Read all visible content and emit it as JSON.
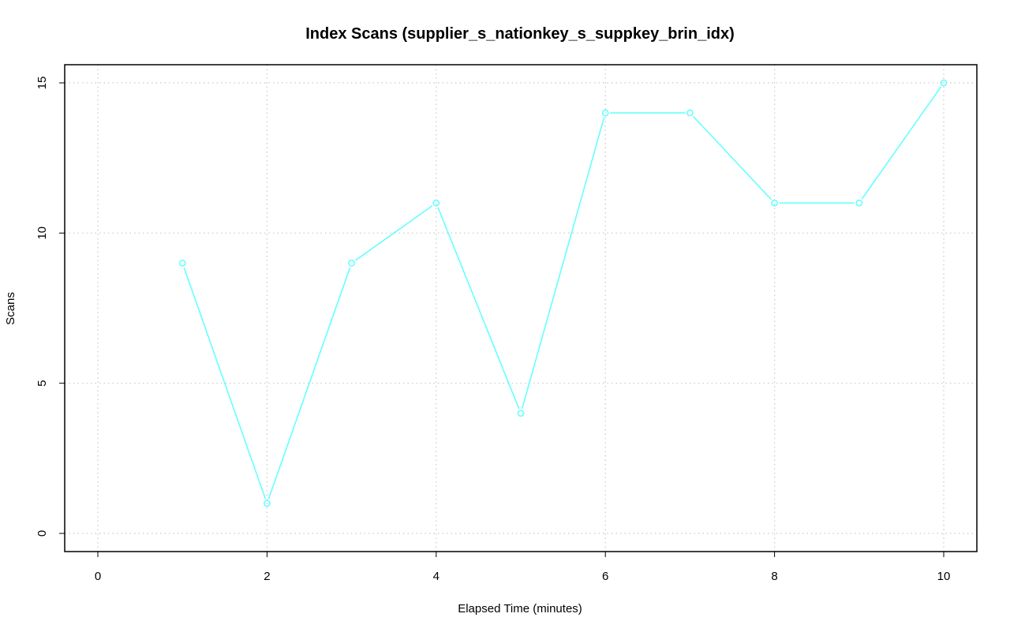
{
  "chart_data": {
    "type": "line",
    "title": "Index Scans (supplier_s_nationkey_s_suppkey_brin_idx)",
    "xlabel": "Elapsed Time (minutes)",
    "ylabel": "Scans",
    "xlim": [
      0,
      10
    ],
    "ylim": [
      0,
      15
    ],
    "x_ticks": [
      0,
      2,
      4,
      6,
      8,
      10
    ],
    "y_ticks": [
      0,
      5,
      10,
      15
    ],
    "grid": true,
    "series": [
      {
        "color": "#66ffff",
        "marker": "open-circle",
        "x": [
          1,
          2,
          3,
          4,
          5,
          6,
          7,
          8,
          9,
          10
        ],
        "y": [
          9,
          1,
          9,
          11,
          4,
          14,
          14,
          11,
          11,
          15
        ]
      }
    ]
  },
  "colors": {
    "series": "#66ffff",
    "grid": "#c8c8c8",
    "frame": "#000000",
    "background": "#ffffff"
  }
}
